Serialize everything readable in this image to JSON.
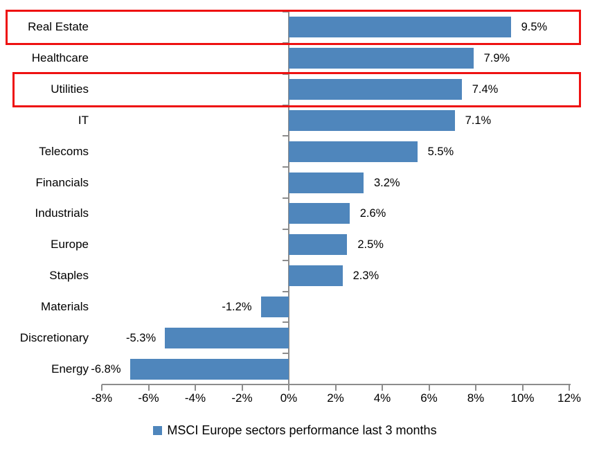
{
  "chart_data": {
    "type": "bar",
    "orientation": "horizontal",
    "categories": [
      "Real Estate",
      "Healthcare",
      "Utilities",
      "IT",
      "Telecoms",
      "Financials",
      "Industrials",
      "Europe",
      "Staples",
      "Materials",
      "Discretionary",
      "Energy"
    ],
    "values": [
      9.5,
      7.9,
      7.4,
      7.1,
      5.5,
      3.2,
      2.6,
      2.5,
      2.3,
      -1.2,
      -5.3,
      -6.8
    ],
    "value_labels": [
      "9.5%",
      "7.9%",
      "7.4%",
      "7.1%",
      "5.5%",
      "3.2%",
      "2.6%",
      "2.5%",
      "2.3%",
      "-1.2%",
      "-5.3%",
      "-6.8%"
    ],
    "x_axis": {
      "min": -8,
      "max": 12,
      "tick_step": 2,
      "tick_labels": [
        "-8%",
        "-6%",
        "-4%",
        "-2%",
        "0%",
        "2%",
        "4%",
        "6%",
        "8%",
        "10%",
        "12%"
      ]
    },
    "legend": {
      "label": "MSCI Europe sectors performance last 3 months",
      "position": "bottom"
    },
    "bar_color": "#4f86bc",
    "axis_color": "#8c8c8c",
    "highlight_color": "#ee1111",
    "highlighted_categories": [
      "Real Estate",
      "Utilities"
    ],
    "grid": false,
    "title": ""
  }
}
